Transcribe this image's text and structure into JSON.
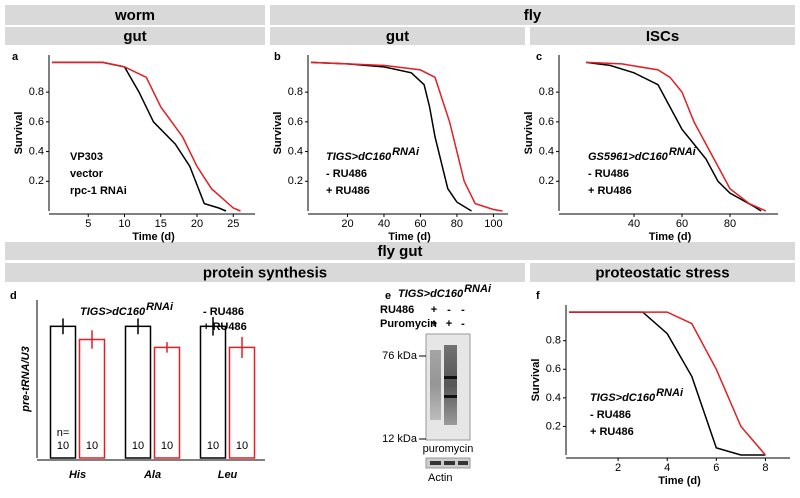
{
  "headers": [
    "worm",
    "fly",
    "gut",
    "gut",
    "ISCs",
    "fly gut",
    "protein synthesis",
    "proteostatic stress"
  ],
  "chart_data": [
    {
      "type": "line",
      "label": "a",
      "ylabel": "Survival",
      "xlabel": "Time (d)",
      "xlim": [
        0,
        28
      ],
      "ylim": [
        0,
        1.05
      ],
      "xticks": [
        5,
        10,
        15,
        20,
        25
      ],
      "yticks": [
        0.2,
        0.4,
        0.6,
        0.8
      ],
      "legend_title": "VP303",
      "series": [
        {
          "name": "vector",
          "color": "#000000",
          "x": [
            0,
            7,
            10,
            12,
            14,
            17,
            19,
            21,
            23,
            24
          ],
          "values": [
            1,
            1,
            0.97,
            0.8,
            0.6,
            0.45,
            0.3,
            0.05,
            0.02,
            0
          ]
        },
        {
          "name": "rpc-1 RNAi",
          "color": "#e31e24",
          "x": [
            0,
            7,
            10,
            13,
            15,
            18,
            20,
            22,
            25,
            26
          ],
          "values": [
            1,
            1,
            0.97,
            0.9,
            0.7,
            0.5,
            0.3,
            0.15,
            0.02,
            0
          ]
        }
      ]
    },
    {
      "type": "line",
      "label": "b",
      "ylabel": "Survival",
      "xlabel": "Time (d)",
      "xlim": [
        0,
        108
      ],
      "ylim": [
        0,
        1.05
      ],
      "xticks": [
        20,
        40,
        60,
        80,
        100
      ],
      "yticks": [
        0.2,
        0.4,
        0.6,
        0.8
      ],
      "legend_title": "TIGS>dC160",
      "legend_title_sup": "RNAi",
      "series": [
        {
          "name": "- RU486",
          "color": "#000000",
          "x": [
            0,
            20,
            40,
            55,
            62,
            65,
            68,
            72,
            75,
            80,
            88
          ],
          "values": [
            1,
            0.99,
            0.97,
            0.93,
            0.85,
            0.7,
            0.5,
            0.3,
            0.15,
            0.06,
            0
          ]
        },
        {
          "name": "+ RU486",
          "color": "#e31e24",
          "x": [
            0,
            20,
            40,
            60,
            68,
            72,
            76,
            80,
            84,
            90,
            100,
            105
          ],
          "values": [
            1,
            0.99,
            0.98,
            0.95,
            0.9,
            0.75,
            0.6,
            0.4,
            0.2,
            0.05,
            0.01,
            0
          ]
        }
      ]
    },
    {
      "type": "line",
      "label": "c",
      "ylabel": "Survival",
      "xlabel": "Time (d)",
      "xlim": [
        10,
        100
      ],
      "ylim": [
        0,
        1.05
      ],
      "xticks": [
        40,
        60,
        80
      ],
      "yticks": [
        0.2,
        0.4,
        0.6,
        0.8
      ],
      "legend_title": "GS5961>dC160",
      "legend_title_sup": "RNAi",
      "series": [
        {
          "name": "- RU486",
          "color": "#000000",
          "x": [
            20,
            30,
            40,
            50,
            55,
            60,
            65,
            70,
            75,
            80,
            90,
            93
          ],
          "values": [
            1,
            0.98,
            0.93,
            0.85,
            0.7,
            0.55,
            0.45,
            0.35,
            0.2,
            0.12,
            0.03,
            0
          ]
        },
        {
          "name": "+ RU486",
          "color": "#e31e24",
          "x": [
            20,
            35,
            50,
            55,
            60,
            65,
            70,
            75,
            80,
            88,
            95
          ],
          "values": [
            1,
            0.99,
            0.95,
            0.9,
            0.8,
            0.6,
            0.45,
            0.3,
            0.15,
            0.05,
            0
          ]
        }
      ]
    },
    {
      "type": "line",
      "label": "f",
      "ylabel": "Survival",
      "xlabel": "Time (d)",
      "xlim": [
        0,
        9
      ],
      "ylim": [
        0,
        1.05
      ],
      "xticks": [
        2,
        4,
        6,
        8
      ],
      "yticks": [
        0.2,
        0.4,
        0.6,
        0.8
      ],
      "legend_title": "TIGS>dC160",
      "legend_title_sup": "RNAi",
      "series": [
        {
          "name": "- RU486",
          "color": "#000000",
          "x": [
            0,
            3,
            4,
            5,
            6,
            7,
            8
          ],
          "values": [
            1,
            1,
            0.85,
            0.55,
            0.05,
            0,
            0
          ]
        },
        {
          "name": "+ RU486",
          "color": "#e31e24",
          "x": [
            0,
            4,
            5,
            6,
            7,
            8
          ],
          "values": [
            1,
            1,
            0.92,
            0.6,
            0.2,
            0
          ]
        }
      ]
    },
    {
      "type": "bar",
      "label": "d",
      "ylabel": "pre-tRNA/U3",
      "categories": [
        "His",
        "Ala",
        "Leu"
      ],
      "ylim": [
        0,
        1.2
      ],
      "legend_title": "TIGS>dC160",
      "legend_title_sup": "RNAi",
      "n_label": "n=",
      "series": [
        {
          "name": "- RU486",
          "color": "#000000",
          "values": [
            1,
            1,
            1
          ],
          "errors": [
            0.06,
            0.06,
            0.07
          ],
          "n": [
            10,
            10,
            10
          ]
        },
        {
          "name": "+ RU486",
          "color": "#e31e24",
          "values": [
            0.9,
            0.84,
            0.84
          ],
          "errors": [
            0.07,
            0.04,
            0.08
          ],
          "n": [
            10,
            10,
            10
          ]
        }
      ]
    }
  ],
  "blot": {
    "label": "e",
    "genotype": "TIGS>dC160",
    "genotype_sup": "RNAi",
    "rows": [
      {
        "name": "RU486",
        "lanes": [
          "+",
          "-",
          "-"
        ]
      },
      {
        "name": "Puromycin",
        "lanes": [
          "+",
          "+",
          "-"
        ]
      }
    ],
    "markers": [
      "76 kDa",
      "12 kDa"
    ],
    "caption": "puromycin",
    "loading": "Actin"
  }
}
